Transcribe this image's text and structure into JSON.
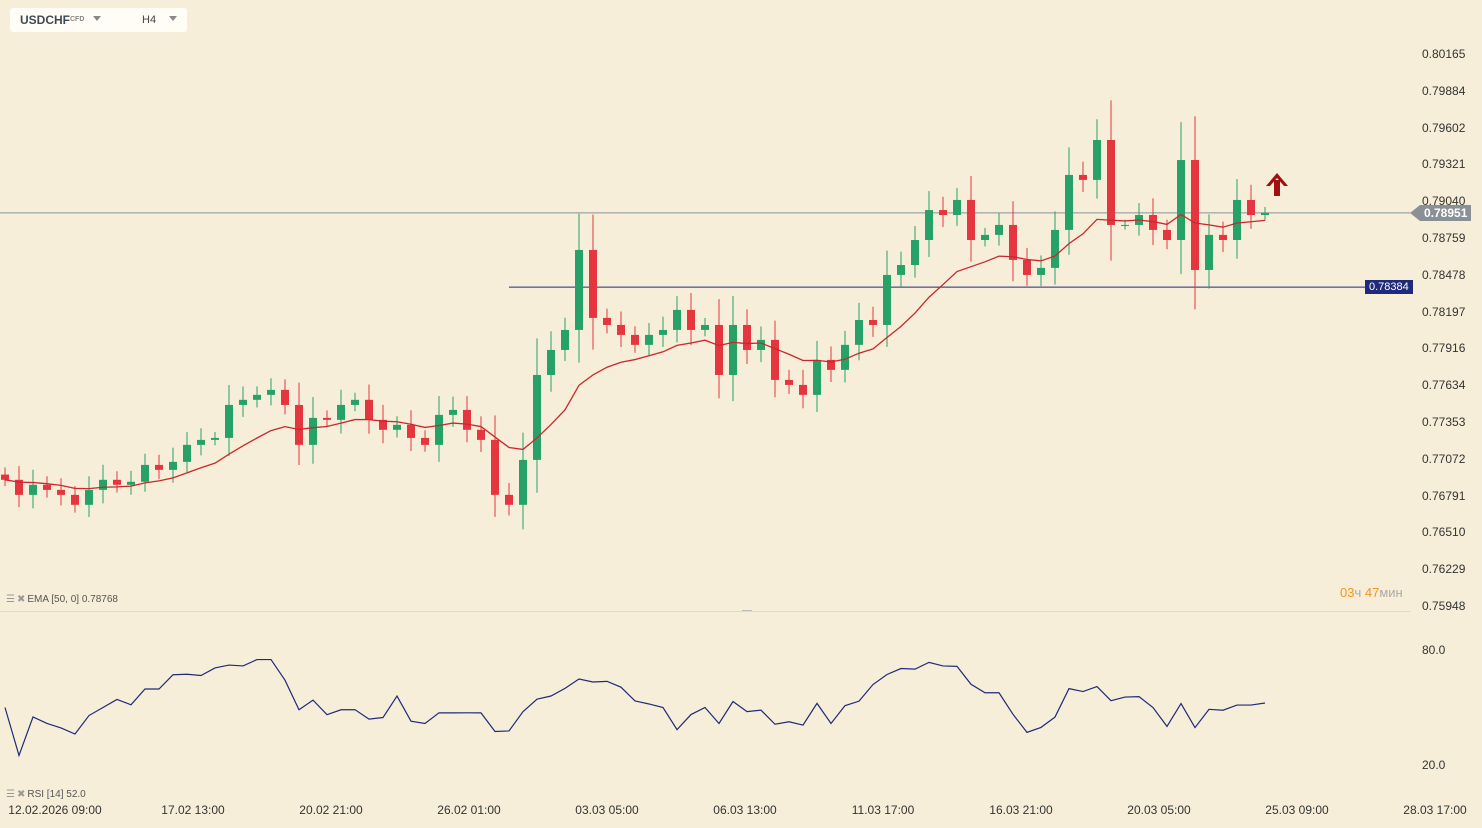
{
  "toolbar": {
    "symbol": "USDCHF",
    "symbol_type": "CFD",
    "timeframe": "H4"
  },
  "colors": {
    "up": "#26a269",
    "down": "#e5353f",
    "ema": "#c8282d",
    "support": "#1f2a7a",
    "rsi": "#1f2a7a",
    "price_badge": "#8a9196",
    "arrow": "#a01010"
  },
  "price_axis": {
    "ticks": [
      "0.80165",
      "0.79884",
      "0.79602",
      "0.79321",
      "0.79040",
      "0.78759",
      "0.78478",
      "0.78197",
      "0.77916",
      "0.77634",
      "0.77353",
      "0.77072",
      "0.76791",
      "0.76510",
      "0.76229",
      "0.75948"
    ],
    "max": 0.80165,
    "min": 0.75948
  },
  "current_price": "0.78951",
  "support_level": "0.78384",
  "timer": {
    "hours": "03",
    "h_unit": "ч",
    "minutes": "47",
    "m_unit": "мин"
  },
  "ema_legend": {
    "label": "EMA [50, 0] 0.78768",
    "period": 50,
    "value": 0.78768
  },
  "rsi_legend": {
    "label": "RSI [14] 52.0",
    "value": 52.0
  },
  "rsi_axis": {
    "ticks": [
      "80.0",
      "20.0"
    ]
  },
  "signal_icon": "up-arrow-icon",
  "x_axis": {
    "labels": [
      "12.02.2026  09:00",
      "17.02  13:00",
      "20.02  21:00",
      "26.02  01:00",
      "03.03  05:00",
      "06.03  13:00",
      "11.03  17:00",
      "16.03  21:00",
      "20.03  05:00",
      "25.03  09:00",
      "28.03  17:00"
    ]
  },
  "chart_data": {
    "type": "candlestick",
    "closes": [
      0.76912,
      0.76797,
      0.76874,
      0.76835,
      0.76797,
      0.76721,
      0.76835,
      0.76912,
      0.76874,
      0.76897,
      0.77026,
      0.76988,
      0.77049,
      0.77179,
      0.77217,
      0.77232,
      0.77484,
      0.77523,
      0.77561,
      0.77599,
      0.77484,
      0.77179,
      0.77385,
      0.7737,
      0.77484,
      0.77523,
      0.7737,
      0.77294,
      0.77332,
      0.77232,
      0.77179,
      0.77408,
      0.77446,
      0.77294,
      0.77217,
      0.76797,
      0.76721,
      0.77064,
      0.77713,
      0.77904,
      0.78057,
      0.78668,
      0.78149,
      0.78095,
      0.78019,
      0.77943,
      0.78019,
      0.78057,
      0.7821,
      0.78057,
      0.78095,
      0.77713,
      0.78095,
      0.77904,
      0.77981,
      0.77675,
      0.77637,
      0.77561,
      0.77828,
      0.77752,
      0.77943,
      0.78133,
      0.78095,
      0.78477,
      0.78553,
      0.78744,
      0.78973,
      0.78935,
      0.7905,
      0.78744,
      0.78783,
      0.78859,
      0.78592,
      0.78477,
      0.78531,
      0.78821,
      0.79241,
      0.79203,
      0.79508,
      0.78859,
      0.78859,
      0.78935,
      0.78821,
      0.78744,
      0.79355,
      0.78515,
      0.78783,
      0.78744,
      0.7905,
      0.78935,
      0.78951
    ],
    "rsi_range": [
      0,
      100
    ]
  }
}
